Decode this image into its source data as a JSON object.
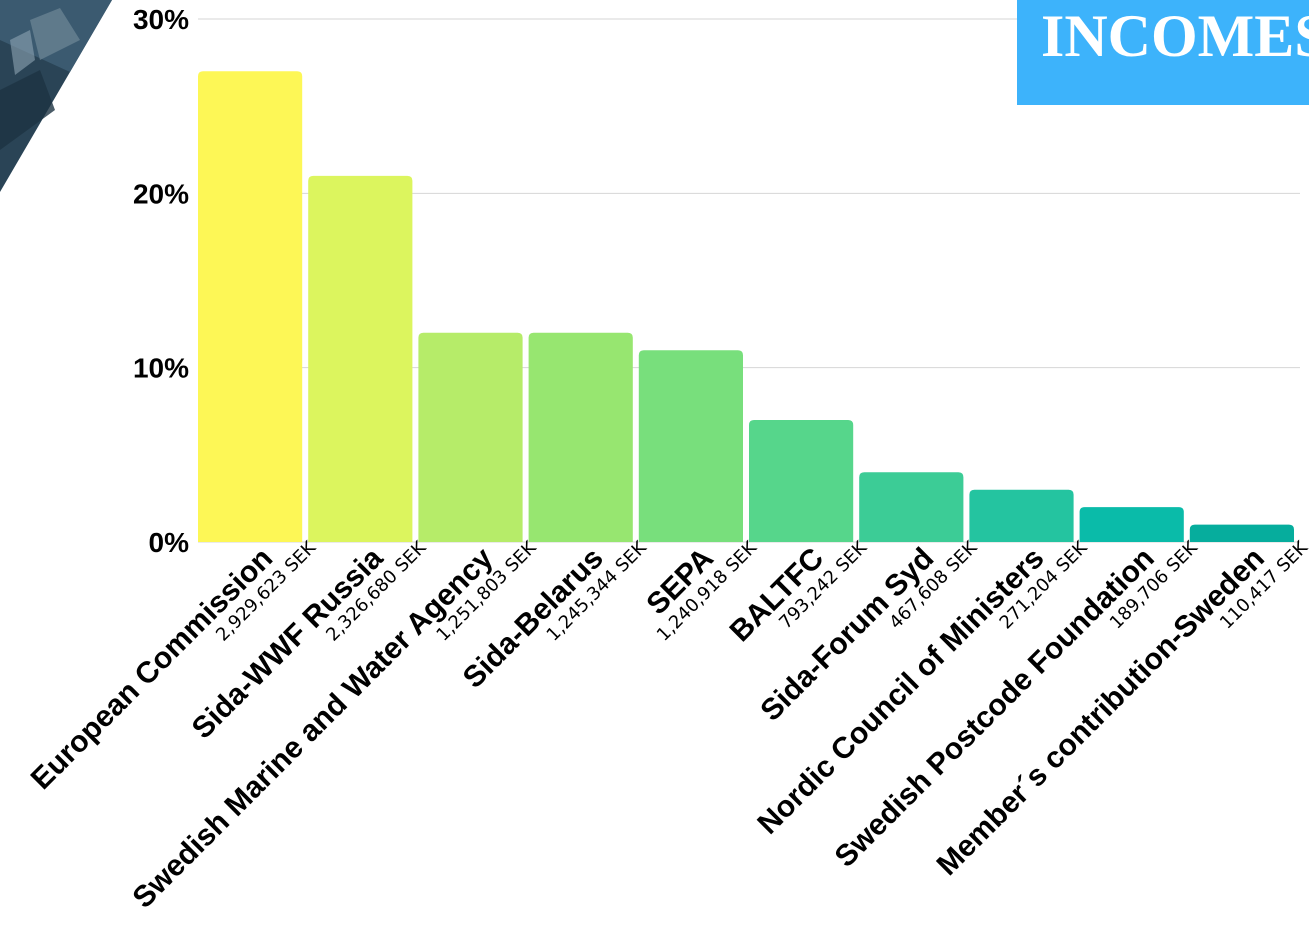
{
  "chart_data": {
    "type": "bar",
    "title": "INCOMES",
    "categories": [
      "European Commission",
      "Sida-WWF Russia",
      "Swedish Marine and Water Agency",
      "Sida-Belarus",
      "SEPA",
      "BALTFC",
      "Sida-Forum Syd",
      "Nordic Council of Ministers",
      "Swedish Postcode Foundation",
      "Member´s contribution-Sweden"
    ],
    "amounts": [
      "2,929,623 SEK",
      "2,326,680 SEK",
      "1,251,803 SEK",
      "1,245,344 SEK",
      "1,240,918 SEK",
      "793,242 SEK",
      "467,608 SEK",
      "271,204 SEK",
      "189,706 SEK",
      "110,417 SEK"
    ],
    "values": [
      27,
      21,
      12,
      12,
      11,
      7,
      4,
      3,
      2,
      1
    ],
    "colors": [
      "#fdf756",
      "#dcf55e",
      "#b6ec69",
      "#97e670",
      "#78df7c",
      "#56d68b",
      "#3ccc96",
      "#24c4a0",
      "#0abba9",
      "#06ad9d"
    ],
    "ylim": [
      0,
      30
    ],
    "yticks": [
      0,
      10,
      20,
      30
    ],
    "ytick_labels": [
      "0%",
      "10%",
      "20%",
      "30%"
    ],
    "grid": true,
    "xlabel": "",
    "ylabel": ""
  }
}
